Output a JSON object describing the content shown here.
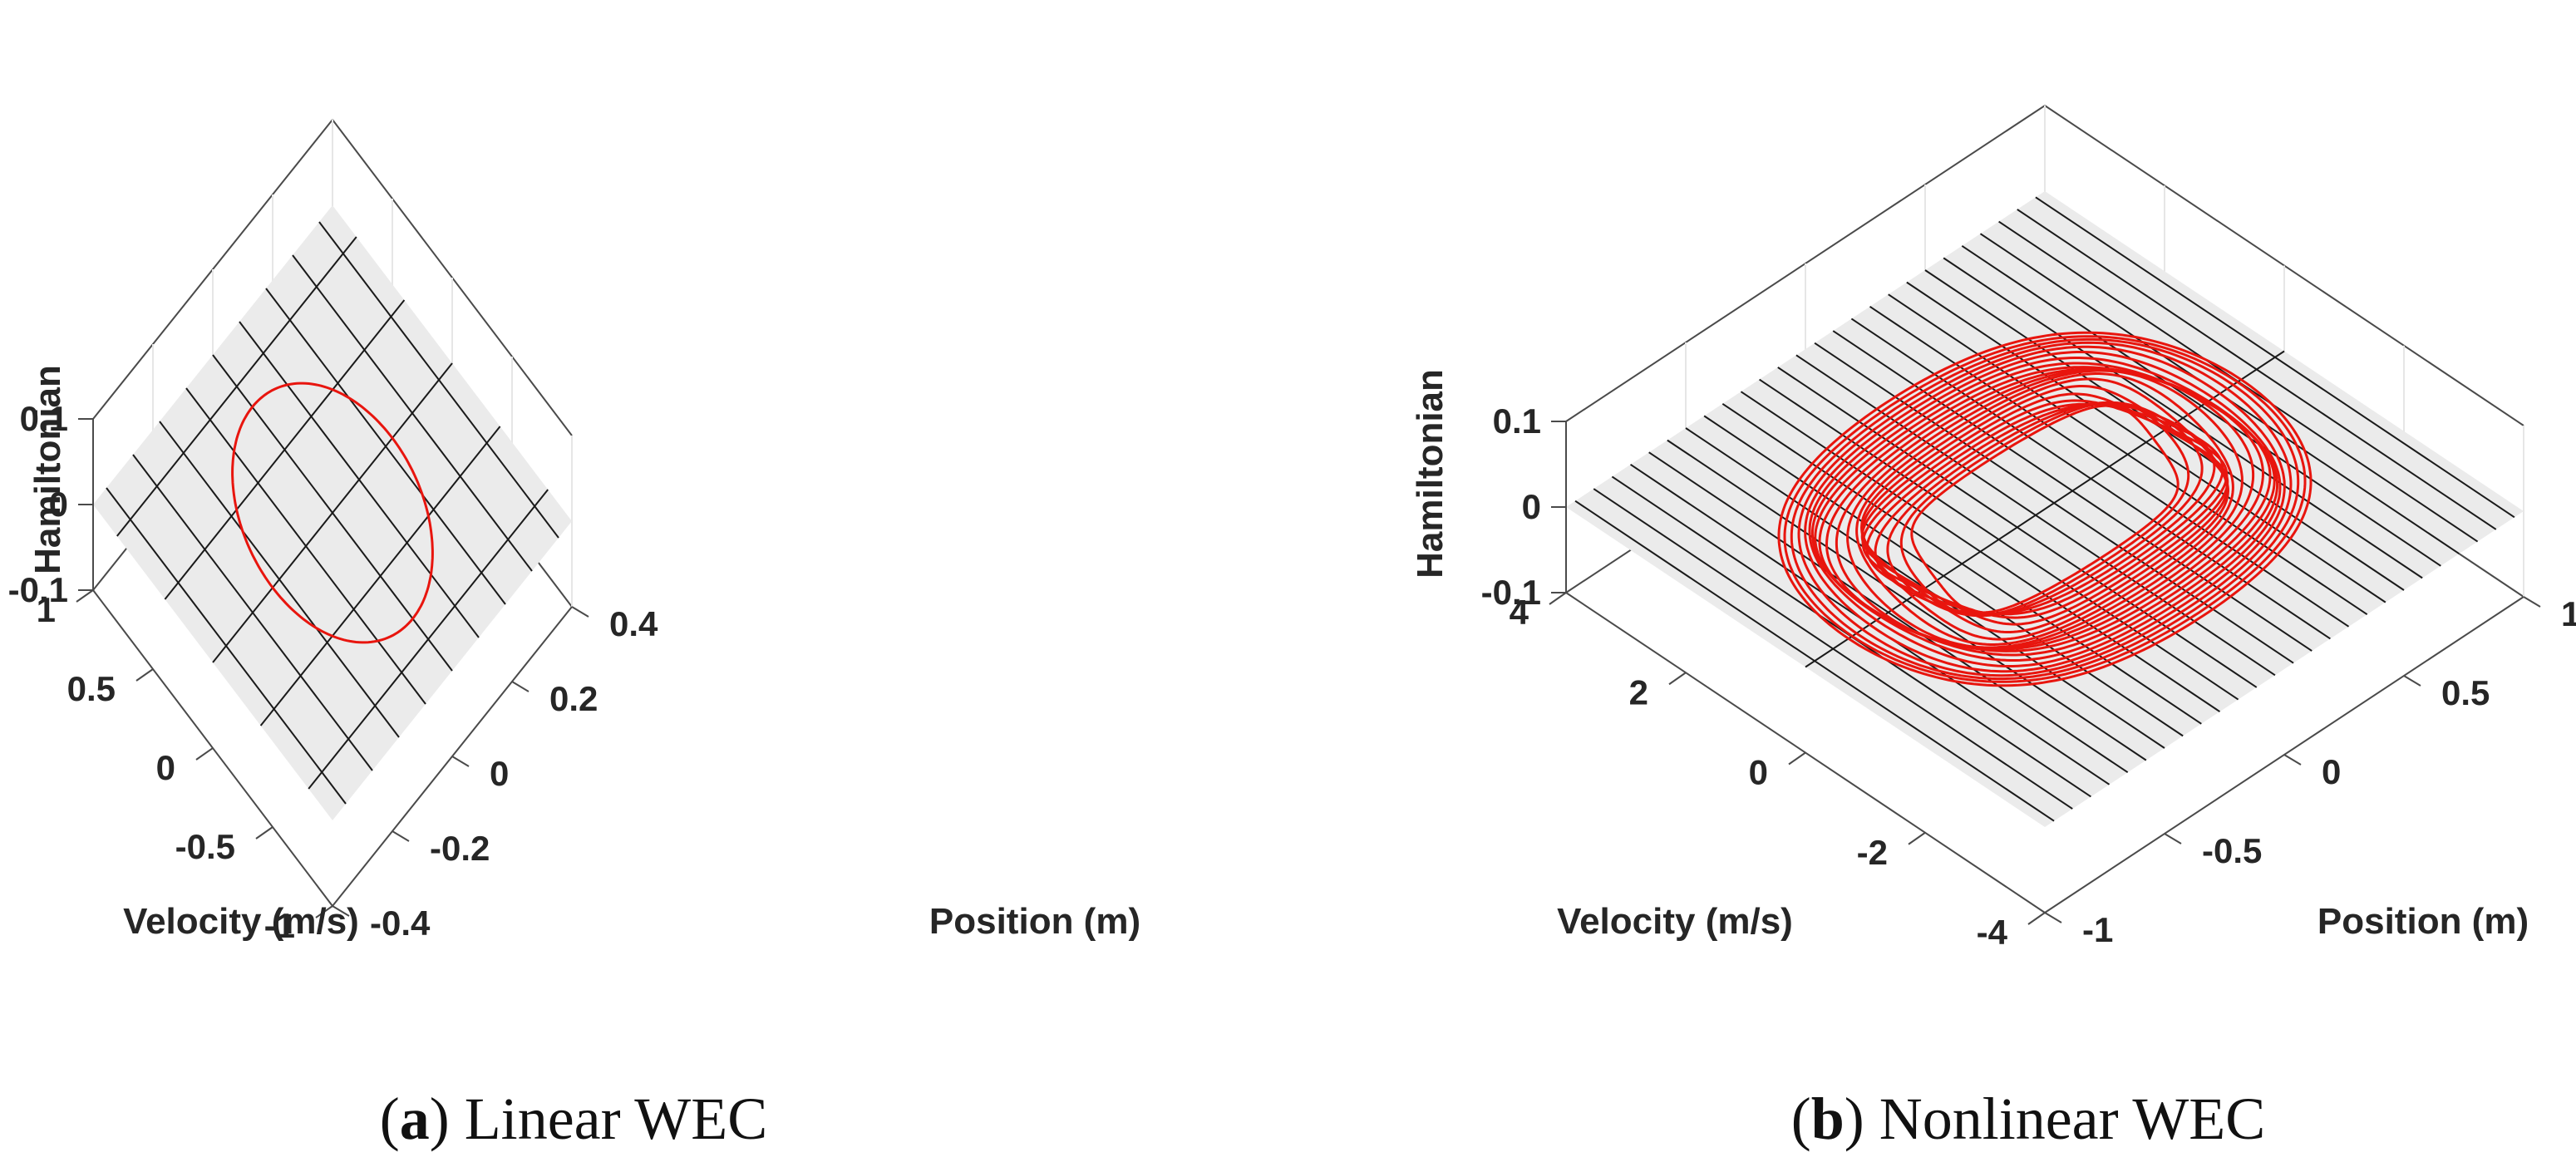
{
  "chart_data": [
    {
      "type": "3d-surface-trajectory",
      "panel": "a",
      "caption_letter": "a",
      "caption_text": "Linear WEC",
      "xlabel": "Position (m)",
      "ylabel": "Velocity (m/s)",
      "zlabel": "Hamiltonian",
      "xlim": [
        -0.4,
        0.4
      ],
      "ylim": [
        -1,
        1
      ],
      "zlim": [
        -0.1,
        0.1
      ],
      "xticks": [
        -0.4,
        -0.2,
        0,
        0.2,
        0.4
      ],
      "xtick_labels": [
        "-0.4",
        "-0.2",
        "0",
        "0.2",
        "0.4"
      ],
      "yticks": [
        -1,
        -0.5,
        0,
        0.5,
        1
      ],
      "ytick_labels": [
        "-1",
        "-0.5",
        "0",
        "0.5",
        "1"
      ],
      "zticks": [
        -0.1,
        0,
        0.1
      ],
      "ztick_labels": [
        "-0.1",
        "0",
        "0.1"
      ],
      "surface": {
        "z": 0,
        "grid_lines_x": 9,
        "grid_lines_y": 5,
        "color": "#ebebeb",
        "edge_color": "#1a1a1a"
      },
      "series": [
        {
          "name": "trajectory",
          "kind": "ellipse",
          "color": "#e8150e",
          "x_amplitude": 0.2,
          "y_amplitude": 0.67,
          "z": 0
        }
      ]
    },
    {
      "type": "3d-surface-trajectory",
      "panel": "b",
      "caption_letter": "b",
      "caption_text": "Nonlinear WEC",
      "xlabel": "Position (m)",
      "ylabel": "Velocity (m/s)",
      "zlabel": "Hamiltonian",
      "xlim": [
        -1,
        1
      ],
      "ylim": [
        -4,
        4
      ],
      "zlim": [
        -0.1,
        0.1
      ],
      "xticks": [
        -1,
        -0.5,
        0,
        0.5,
        1
      ],
      "xtick_labels": [
        "-1",
        "-0.5",
        "0",
        "0.5",
        "1"
      ],
      "yticks": [
        -4,
        -2,
        0,
        2,
        4
      ],
      "ytick_labels": [
        "-4",
        "-2",
        "0",
        "2",
        "4"
      ],
      "zticks": [
        -0.1,
        0,
        0.1
      ],
      "ztick_labels": [
        "-0.1",
        "0",
        "0.1"
      ],
      "surface": {
        "z": 0,
        "grid_lines_x": 26,
        "grid_lines_y": 1,
        "color": "#ebebeb",
        "edge_color": "#1a1a1a"
      },
      "series": [
        {
          "name": "trajectory",
          "kind": "multi-loop",
          "color": "#e8150e",
          "loops": 22,
          "x_amplitude_min": 0.55,
          "x_amplitude_max": 0.82,
          "y_amplitude_min": 1.2,
          "y_amplitude_max": 2.95,
          "z": 0
        }
      ]
    }
  ]
}
